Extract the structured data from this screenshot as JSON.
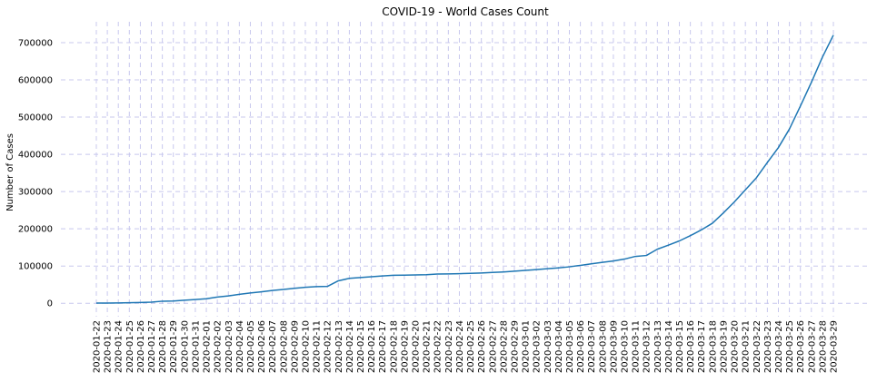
{
  "chart_data": {
    "type": "line",
    "title": "COVID-19 - World Cases Count",
    "xlabel": "",
    "ylabel": "Number of Cases",
    "x": [
      "2020-01-22",
      "2020-01-23",
      "2020-01-24",
      "2020-01-25",
      "2020-01-26",
      "2020-01-27",
      "2020-01-28",
      "2020-01-29",
      "2020-01-30",
      "2020-01-31",
      "2020-02-01",
      "2020-02-02",
      "2020-02-03",
      "2020-02-04",
      "2020-02-05",
      "2020-02-06",
      "2020-02-07",
      "2020-02-08",
      "2020-02-09",
      "2020-02-10",
      "2020-02-11",
      "2020-02-12",
      "2020-02-13",
      "2020-02-14",
      "2020-02-15",
      "2020-02-16",
      "2020-02-17",
      "2020-02-18",
      "2020-02-19",
      "2020-02-20",
      "2020-02-21",
      "2020-02-22",
      "2020-02-23",
      "2020-02-24",
      "2020-02-25",
      "2020-02-26",
      "2020-02-27",
      "2020-02-28",
      "2020-02-29",
      "2020-03-01",
      "2020-03-02",
      "2020-03-03",
      "2020-03-04",
      "2020-03-05",
      "2020-03-06",
      "2020-03-07",
      "2020-03-08",
      "2020-03-09",
      "2020-03-10",
      "2020-03-11",
      "2020-03-12",
      "2020-03-13",
      "2020-03-14",
      "2020-03-15",
      "2020-03-16",
      "2020-03-17",
      "2020-03-18",
      "2020-03-19",
      "2020-03-20",
      "2020-03-21",
      "2020-03-22",
      "2020-03-23",
      "2020-03-24",
      "2020-03-25",
      "2020-03-26",
      "2020-03-27",
      "2020-03-28",
      "2020-03-29"
    ],
    "series": [
      {
        "name": "",
        "color": "#1f77b4",
        "values": [
          555,
          654,
          941,
          1434,
          2118,
          2927,
          5578,
          6166,
          8234,
          9927,
          12038,
          16787,
          19881,
          23892,
          27635,
          30794,
          34391,
          37120,
          40150,
          42762,
          44802,
          45221,
          60368,
          66885,
          69030,
          71224,
          73258,
          75136,
          75639,
          76197,
          76819,
          78572,
          78958,
          79561,
          80406,
          81388,
          82746,
          84112,
          86011,
          88369,
          90306,
          92840,
          95120,
          97886,
          101801,
          105847,
          109821,
          113590,
          118620,
          125875,
          128352,
          145205,
          156101,
          167454,
          181574,
          197102,
          214821,
          242570,
          272208,
          304507,
          336953,
          378235,
          418045,
          467653,
          529591,
          593291,
          660706,
          720117
        ]
      }
    ],
    "yticks": [
      0,
      100000,
      200000,
      300000,
      400000,
      500000,
      600000,
      700000
    ],
    "ylim": [
      -36000,
      756000
    ],
    "grid": true,
    "legend": "none"
  }
}
